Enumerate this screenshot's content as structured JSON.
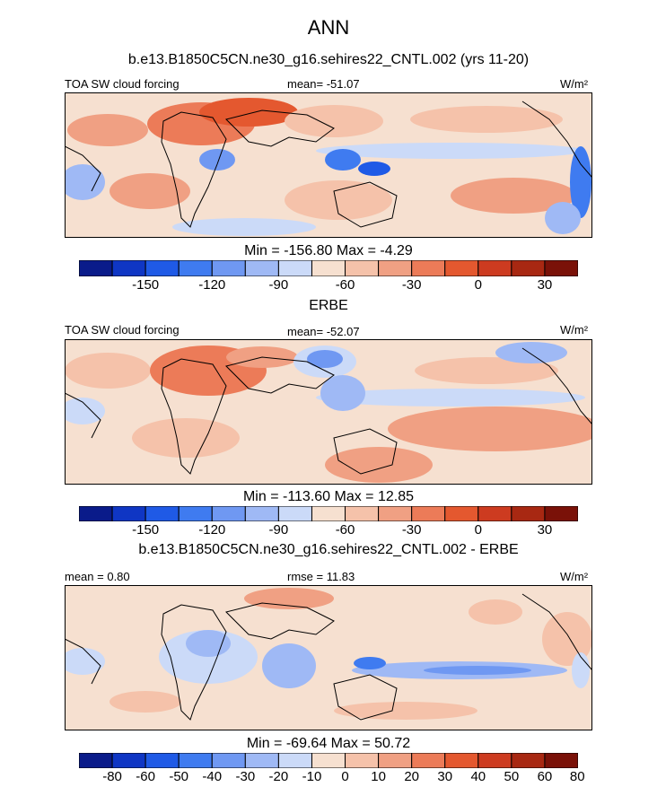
{
  "header": {
    "season": "ANN",
    "model_title": "b.e13.B1850C5CN.ne30_g16.sehires22_CNTL.002 (yrs 11-20)"
  },
  "panels": [
    {
      "left_label": "TOA SW cloud forcing",
      "stat_label": "mean= -51.07",
      "units": "W/m²",
      "minmax": "Min = -156.80 Max =  -4.29",
      "colorbar_ticks": [
        "-150",
        "-120",
        "-90",
        "-60",
        "-30",
        "0",
        "30"
      ]
    },
    {
      "title": "ERBE",
      "left_label": "TOA SW cloud forcing",
      "stat_label": "mean= -52.07",
      "units": "W/m²",
      "minmax": "Min = -113.60 Max =  12.85",
      "colorbar_ticks": [
        "-150",
        "-120",
        "-90",
        "-60",
        "-30",
        "0",
        "30"
      ]
    },
    {
      "title": "b.e13.B1850C5CN.ne30_g16.sehires22_CNTL.002 - ERBE",
      "mean_label": "mean =   0.80",
      "rmse_label": "rmse =  11.83",
      "units": "W/m²",
      "minmax": "Min = -69.64 Max =  50.72",
      "colorbar_ticks": [
        "-80",
        "-60",
        "-50",
        "-40",
        "-30",
        "-20",
        "-10",
        "0",
        "10",
        "20",
        "30",
        "40",
        "50",
        "60",
        "80"
      ]
    }
  ],
  "chart_data": [
    {
      "type": "heatmap",
      "title": "TOA SW cloud forcing",
      "subtitle": "b.e13.B1850C5CN.ne30_g16.sehires22_CNTL.002 (yrs 11-20)",
      "units": "W/m²",
      "mean": -51.07,
      "min": -156.8,
      "max": -4.29,
      "contour_levels": [
        -150,
        -135,
        -120,
        -105,
        -90,
        -75,
        -60,
        -45,
        -30,
        -15,
        0,
        15,
        30,
        45
      ],
      "tick_labels": [
        -150,
        -120,
        -90,
        -60,
        -30,
        0,
        30
      ]
    },
    {
      "type": "heatmap",
      "title": "ERBE",
      "units": "W/m²",
      "mean": -52.07,
      "min": -113.6,
      "max": 12.85,
      "contour_levels": [
        -150,
        -135,
        -120,
        -105,
        -90,
        -75,
        -60,
        -45,
        -30,
        -15,
        0,
        15,
        30,
        45
      ],
      "tick_labels": [
        -150,
        -120,
        -90,
        -60,
        -30,
        0,
        30
      ]
    },
    {
      "type": "heatmap",
      "title": "b.e13.B1850C5CN.ne30_g16.sehires22_CNTL.002 - ERBE",
      "units": "W/m²",
      "mean": 0.8,
      "rmse": 11.83,
      "min": -69.64,
      "max": 50.72,
      "contour_levels": [
        -80,
        -60,
        -50,
        -40,
        -30,
        -20,
        -10,
        0,
        10,
        20,
        30,
        40,
        50,
        60,
        80
      ],
      "tick_labels": [
        -80,
        -60,
        -50,
        -40,
        -30,
        -20,
        -10,
        0,
        10,
        20,
        30,
        40,
        50,
        60,
        80
      ]
    }
  ],
  "colors": {
    "palette": [
      "#0a1b8a",
      "#0f36c4",
      "#1f5ae6",
      "#3f7bf0",
      "#6f98f2",
      "#9fb9f5",
      "#cbdaf8",
      "#f6e0d0",
      "#f5c2aa",
      "#f0a083",
      "#ec7b58",
      "#e4582f",
      "#cd3b20",
      "#a82812",
      "#7a1108"
    ],
    "land": "#000000"
  }
}
